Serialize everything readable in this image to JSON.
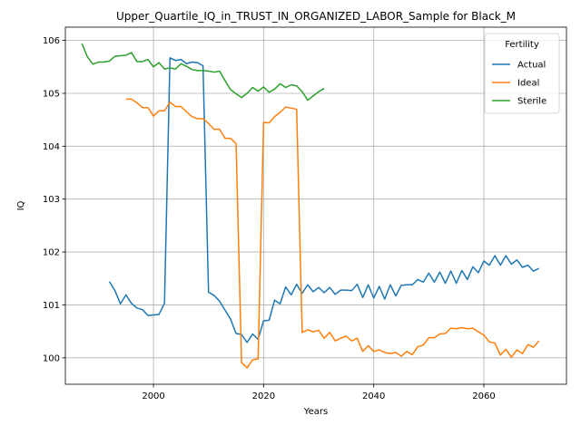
{
  "chart_data": {
    "type": "line",
    "title": "Upper_Quartile_IQ_in_TRUST_IN_ORGANIZED_LABOR_Sample for Black_M",
    "xlabel": "Years",
    "ylabel": "IQ",
    "xlim": [
      1984,
      2075
    ],
    "ylim": [
      99.5,
      106.25
    ],
    "xticks": [
      2000,
      2020,
      2040,
      2060
    ],
    "yticks": [
      100,
      101,
      102,
      103,
      104,
      105,
      106
    ],
    "grid": true,
    "legend": {
      "title": "Fertility",
      "placement": "top-right"
    },
    "series": [
      {
        "name": "Actual",
        "color": "#1f77b4",
        "x": [
          1992,
          1993,
          1994,
          1995,
          1996,
          1997,
          1998,
          1999,
          2000,
          2001,
          2002,
          2003,
          2004,
          2005,
          2006,
          2007,
          2008,
          2009,
          2010,
          2011,
          2012,
          2013,
          2014,
          2015,
          2016,
          2017,
          2018,
          2019,
          2020,
          2021,
          2022,
          2023,
          2024,
          2025,
          2026,
          2027,
          2028,
          2029,
          2030,
          2031,
          2032,
          2033,
          2034,
          2035,
          2036,
          2037,
          2038,
          2039,
          2040,
          2041,
          2042,
          2043,
          2044,
          2045,
          2046,
          2047,
          2048,
          2049,
          2050,
          2051,
          2052,
          2053,
          2054,
          2055,
          2056,
          2057,
          2058,
          2059,
          2060,
          2061,
          2062,
          2063,
          2064,
          2065,
          2066,
          2067,
          2068,
          2069,
          2070
        ],
        "values": [
          101.44,
          101.27,
          101.02,
          101.19,
          101.03,
          100.94,
          100.91,
          100.8,
          100.81,
          100.82,
          101.03,
          105.67,
          105.62,
          105.64,
          105.56,
          105.59,
          105.58,
          105.52,
          101.24,
          101.18,
          101.07,
          100.9,
          100.73,
          100.46,
          100.44,
          100.29,
          100.45,
          100.35,
          100.7,
          100.71,
          101.09,
          101.02,
          101.34,
          101.19,
          101.39,
          101.22,
          101.38,
          101.25,
          101.33,
          101.23,
          101.33,
          101.2,
          101.28,
          101.28,
          101.27,
          101.39,
          101.14,
          101.38,
          101.13,
          101.35,
          101.11,
          101.38,
          101.17,
          101.37,
          101.38,
          101.38,
          101.48,
          101.43,
          101.6,
          101.43,
          101.62,
          101.41,
          101.64,
          101.41,
          101.65,
          101.48,
          101.72,
          101.61,
          101.83,
          101.75,
          101.93,
          101.75,
          101.93,
          101.77,
          101.85,
          101.71,
          101.75,
          101.64,
          101.69
        ]
      },
      {
        "name": "Ideal",
        "color": "#ff7f0e",
        "x": [
          1995,
          1996,
          1997,
          1998,
          1999,
          2000,
          2001,
          2002,
          2003,
          2004,
          2005,
          2006,
          2007,
          2008,
          2009,
          2010,
          2011,
          2012,
          2013,
          2014,
          2015,
          2016,
          2017,
          2018,
          2019,
          2020,
          2021,
          2022,
          2023,
          2024,
          2025,
          2026,
          2027,
          2028,
          2029,
          2030,
          2031,
          2032,
          2033,
          2034,
          2035,
          2036,
          2037,
          2038,
          2039,
          2040,
          2041,
          2042,
          2043,
          2044,
          2045,
          2046,
          2047,
          2048,
          2049,
          2050,
          2051,
          2052,
          2053,
          2054,
          2055,
          2056,
          2057,
          2058,
          2059,
          2060,
          2061,
          2062,
          2063,
          2064,
          2065,
          2066,
          2067,
          2068,
          2069,
          2070
        ],
        "values": [
          104.89,
          104.89,
          104.82,
          104.73,
          104.73,
          104.57,
          104.67,
          104.67,
          104.83,
          104.75,
          104.75,
          104.65,
          104.56,
          104.52,
          104.52,
          104.43,
          104.32,
          104.32,
          104.15,
          104.15,
          104.05,
          99.91,
          99.81,
          99.96,
          99.98,
          104.45,
          104.44,
          104.56,
          104.64,
          104.74,
          104.72,
          104.7,
          100.48,
          100.53,
          100.49,
          100.52,
          100.37,
          100.48,
          100.32,
          100.37,
          100.41,
          100.32,
          100.37,
          100.12,
          100.23,
          100.12,
          100.15,
          100.1,
          100.08,
          100.1,
          100.03,
          100.12,
          100.06,
          100.21,
          100.24,
          100.38,
          100.38,
          100.45,
          100.46,
          100.56,
          100.55,
          100.57,
          100.55,
          100.56,
          100.49,
          100.43,
          100.3,
          100.28,
          100.05,
          100.16,
          100.01,
          100.15,
          100.08,
          100.25,
          100.2,
          100.32
        ]
      },
      {
        "name": "Sterile",
        "color": "#2ca02c",
        "x": [
          1987,
          1988,
          1989,
          1990,
          1991,
          1992,
          1993,
          1994,
          1995,
          1996,
          1997,
          1998,
          1999,
          2000,
          2001,
          2002,
          2003,
          2004,
          2005,
          2006,
          2007,
          2008,
          2009,
          2010,
          2011,
          2012,
          2013,
          2014,
          2015,
          2016,
          2017,
          2018,
          2019,
          2020,
          2021,
          2022,
          2023,
          2024,
          2025,
          2026,
          2027,
          2028,
          2029,
          2030,
          2031
        ],
        "values": [
          105.94,
          105.69,
          105.55,
          105.59,
          105.59,
          105.61,
          105.7,
          105.71,
          105.72,
          105.77,
          105.6,
          105.6,
          105.64,
          105.5,
          105.58,
          105.46,
          105.48,
          105.46,
          105.56,
          105.51,
          105.45,
          105.43,
          105.43,
          105.42,
          105.4,
          105.42,
          105.24,
          105.07,
          104.99,
          104.92,
          105.0,
          105.11,
          105.04,
          105.12,
          105.02,
          105.08,
          105.18,
          105.11,
          105.16,
          105.14,
          105.03,
          104.87,
          104.95,
          105.03,
          105.09
        ]
      }
    ]
  }
}
